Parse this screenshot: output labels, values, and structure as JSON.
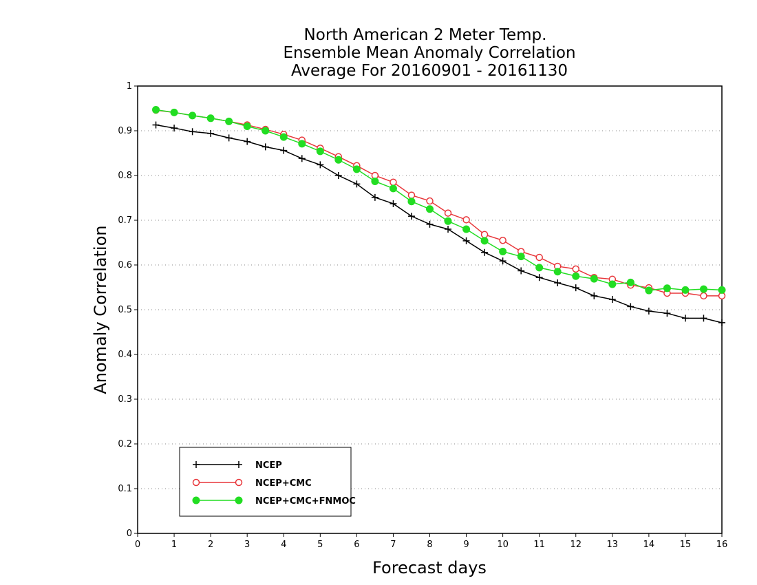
{
  "chart_data": {
    "type": "line",
    "title_lines": [
      "North American 2 Meter Temp.",
      "Ensemble Mean Anomaly Correlation",
      "Average For 20160901 - 20161130"
    ],
    "xlabel": "Forecast days",
    "ylabel": "Anomaly Correlation",
    "xlim": [
      0,
      16
    ],
    "ylim": [
      0,
      1
    ],
    "x_ticks": [
      0,
      1,
      2,
      3,
      4,
      5,
      6,
      7,
      8,
      9,
      10,
      11,
      12,
      13,
      14,
      15,
      16
    ],
    "y_ticks": [
      0,
      0.1,
      0.2,
      0.3,
      0.4,
      0.5,
      0.6,
      0.7,
      0.8,
      0.9,
      1
    ],
    "y_tick_labels": [
      "0",
      "0.1",
      "0.2",
      "0.3",
      "0.4",
      "0.5",
      "0.6",
      "0.7",
      "0.8",
      "0.9",
      "1"
    ],
    "grid": "horizontal dotted",
    "legend_position": "bottom-left",
    "x": [
      0.5,
      1,
      1.5,
      2,
      2.5,
      3,
      3.5,
      4,
      4.5,
      5,
      5.5,
      6,
      6.5,
      7,
      7.5,
      8,
      8.5,
      9,
      9.5,
      10,
      10.5,
      11,
      11.5,
      12,
      12.5,
      13,
      13.5,
      14,
      14.5,
      15,
      15.5,
      16
    ],
    "series": [
      {
        "name": "NCEP",
        "color": "#000000",
        "marker": "plus",
        "values": [
          0.913,
          0.906,
          0.898,
          0.894,
          0.884,
          0.876,
          0.864,
          0.856,
          0.838,
          0.824,
          0.8,
          0.781,
          0.751,
          0.737,
          0.709,
          0.691,
          0.68,
          0.654,
          0.628,
          0.609,
          0.587,
          0.572,
          0.56,
          0.549,
          0.531,
          0.523,
          0.507,
          0.497,
          0.492,
          0.481,
          0.481,
          0.471
        ]
      },
      {
        "name": "NCEP+CMC",
        "color": "#e8363a",
        "marker": "open-circle",
        "values": [
          0.946,
          0.941,
          0.934,
          0.928,
          0.921,
          0.913,
          0.903,
          0.892,
          0.879,
          0.861,
          0.842,
          0.822,
          0.8,
          0.785,
          0.756,
          0.743,
          0.716,
          0.701,
          0.668,
          0.655,
          0.63,
          0.617,
          0.597,
          0.591,
          0.572,
          0.568,
          0.555,
          0.549,
          0.537,
          0.537,
          0.531,
          0.531
        ]
      },
      {
        "name": "NCEP+CMC+FNMOC",
        "color": "#22dd22",
        "marker": "filled-circle",
        "values": [
          0.947,
          0.941,
          0.934,
          0.928,
          0.921,
          0.91,
          0.9,
          0.886,
          0.871,
          0.854,
          0.835,
          0.814,
          0.787,
          0.771,
          0.742,
          0.725,
          0.698,
          0.68,
          0.654,
          0.63,
          0.619,
          0.594,
          0.585,
          0.575,
          0.569,
          0.557,
          0.561,
          0.543,
          0.548,
          0.544,
          0.546,
          0.544
        ]
      }
    ]
  }
}
